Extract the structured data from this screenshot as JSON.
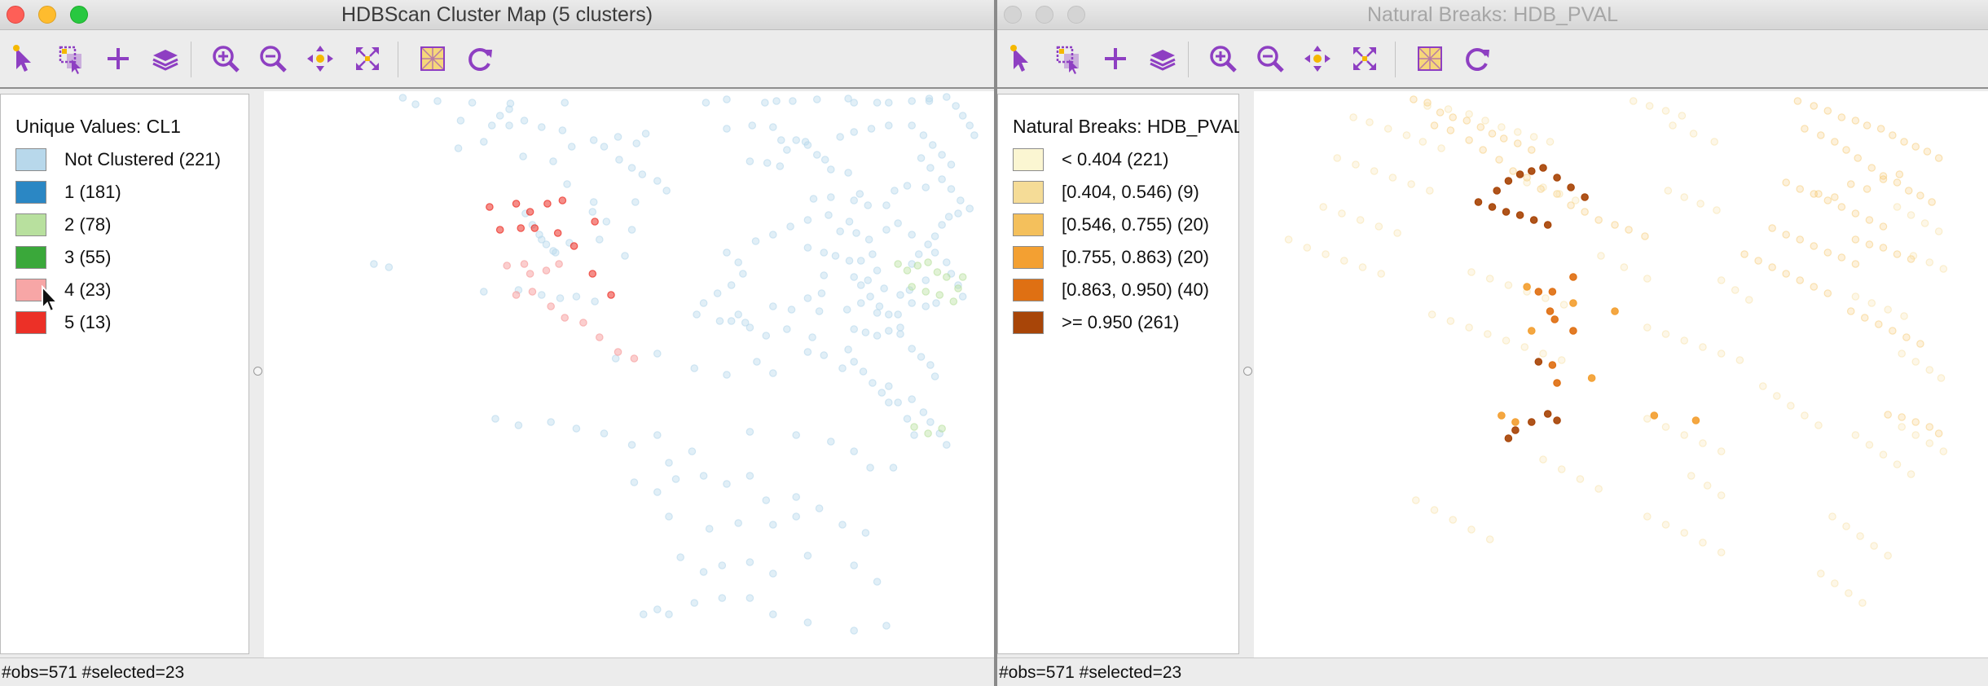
{
  "left_window": {
    "title": "HDBScan Cluster Map (5 clusters)",
    "legend": {
      "title": "Unique Values: CL1",
      "items": [
        {
          "label": "Not Clustered (221)",
          "color": "#b8d8eb"
        },
        {
          "label": "1 (181)",
          "color": "#2b87c4"
        },
        {
          "label": "2 (78)",
          "color": "#b8e09e"
        },
        {
          "label": "3 (55)",
          "color": "#3aa83a"
        },
        {
          "label": "4 (23)",
          "color": "#f7a6a6"
        },
        {
          "label": "5 (13)",
          "color": "#ec3027"
        }
      ]
    },
    "status": "#obs=571 #selected=23"
  },
  "right_window": {
    "title": "Natural Breaks: HDB_PVAL",
    "legend": {
      "title": "Natural Breaks: HDB_PVAL",
      "items": [
        {
          "label": "< 0.404 (221)",
          "color": "#fbf6d2"
        },
        {
          "label": "[0.404, 0.546) (9)",
          "color": "#f5dc97"
        },
        {
          "label": "[0.546, 0.755) (20)",
          "color": "#f4c05c"
        },
        {
          "label": "[0.755, 0.863) (20)",
          "color": "#f3a032"
        },
        {
          "label": "[0.863, 0.950) (40)",
          "color": "#df7013"
        },
        {
          "label": ">= 0.950 (261)",
          "color": "#a84508"
        }
      ]
    },
    "status": "#obs=571 #selected=23"
  },
  "toolbar_icons": [
    "select-arrow-icon",
    "selection-tool-icon",
    "add-icon",
    "layers-icon",
    "zoom-in-icon",
    "zoom-out-icon",
    "pan-icon",
    "full-extent-icon",
    "basemap-icon",
    "refresh-icon"
  ]
}
